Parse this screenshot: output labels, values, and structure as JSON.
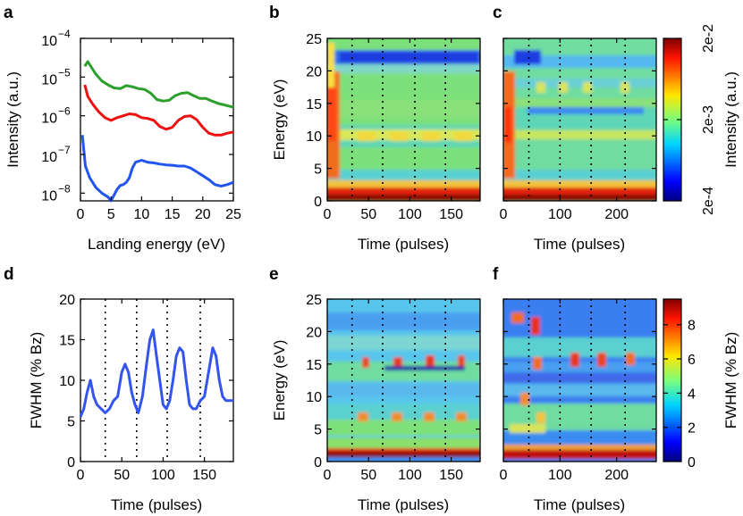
{
  "panel_labels": [
    "a",
    "b",
    "c",
    "d",
    "e",
    "f"
  ],
  "colors": {
    "green": "#2ca02c",
    "red": "#ee1111",
    "blue": "#2255ee",
    "fwhm": "#3355ee"
  },
  "chart_data": [
    {
      "id": "a",
      "type": "line",
      "xlabel": "Landing energy (eV)",
      "ylabel": "Intensity (a.u.)",
      "xlim": [
        0,
        25
      ],
      "ylim_log10": [
        -8.2,
        -4
      ],
      "yscale": "log",
      "xticks": [
        0,
        5,
        10,
        15,
        20,
        25
      ],
      "xtick_labels": [
        "0",
        "5",
        "10",
        "15",
        "20",
        "25"
      ],
      "ytick_labels": [
        {
          "base": "10",
          "exp": "−8",
          "value": -8
        },
        {
          "base": "10",
          "exp": "−7",
          "value": -7
        },
        {
          "base": "10",
          "exp": "−6",
          "value": -6
        },
        {
          "base": "10",
          "exp": "−5",
          "value": -5
        },
        {
          "base": "10",
          "exp": "−4",
          "value": -4
        }
      ],
      "series": [
        {
          "name": "green",
          "color": "#2ca02c",
          "x": [
            0.7,
            1.2,
            1.8,
            2.5,
            3.5,
            4.5,
            5.5,
            6.5,
            7.5,
            8.5,
            9.5,
            10.5,
            11.5,
            12.5,
            13.5,
            14.5,
            15.5,
            16.5,
            17.5,
            18.5,
            19.5,
            20.5,
            21.5,
            22.5,
            23.5,
            25
          ],
          "log10y": [
            -4.72,
            -4.6,
            -4.75,
            -4.92,
            -5.1,
            -5.2,
            -5.28,
            -5.3,
            -5.22,
            -5.25,
            -5.3,
            -5.32,
            -5.42,
            -5.58,
            -5.62,
            -5.6,
            -5.48,
            -5.42,
            -5.4,
            -5.48,
            -5.55,
            -5.55,
            -5.62,
            -5.68,
            -5.72,
            -5.78
          ]
        },
        {
          "name": "red",
          "color": "#ee1111",
          "x": [
            0.7,
            1.2,
            2,
            3,
            4,
            5,
            6,
            7,
            8,
            9,
            10,
            11,
            12,
            13,
            14,
            15,
            16,
            17,
            18,
            19,
            20,
            21,
            22,
            23,
            24,
            25
          ],
          "log10y": [
            -5.2,
            -5.5,
            -5.7,
            -5.9,
            -6.05,
            -6.12,
            -6.05,
            -6.0,
            -5.95,
            -5.97,
            -6.05,
            -6.07,
            -6.12,
            -6.28,
            -6.35,
            -6.3,
            -6.12,
            -6.02,
            -6.0,
            -6.1,
            -6.3,
            -6.45,
            -6.5,
            -6.5,
            -6.45,
            -6.42
          ]
        },
        {
          "name": "blue",
          "color": "#2255ee",
          "x": [
            0.3,
            0.8,
            1.5,
            2.5,
            3.5,
            4.5,
            5,
            5.5,
            6,
            6.5,
            7,
            7.5,
            8,
            8.5,
            9,
            10,
            11,
            12,
            13,
            14,
            15,
            16,
            17,
            18,
            19,
            20,
            21,
            22,
            23,
            24,
            25
          ],
          "log10y": [
            -6.5,
            -7.3,
            -7.6,
            -7.85,
            -8.0,
            -8.1,
            -8.2,
            -8.05,
            -7.9,
            -7.8,
            -7.78,
            -7.72,
            -7.6,
            -7.35,
            -7.2,
            -7.15,
            -7.2,
            -7.22,
            -7.25,
            -7.27,
            -7.28,
            -7.3,
            -7.3,
            -7.35,
            -7.45,
            -7.55,
            -7.65,
            -7.78,
            -7.82,
            -7.78,
            -7.72
          ]
        }
      ]
    },
    {
      "id": "b",
      "type": "heatmap",
      "xlabel": "Time (pulses)",
      "ylabel": "Energy (eV)",
      "xlim": [
        0,
        185
      ],
      "ylim": [
        0,
        25
      ],
      "xticks": [
        0,
        50,
        100,
        150
      ],
      "yticks": [
        0,
        5,
        10,
        15,
        20,
        25
      ],
      "markers": [
        30,
        67,
        106,
        143
      ],
      "colorscale": "log",
      "cmin": 0.0002,
      "cmax": 0.02
    },
    {
      "id": "c",
      "type": "heatmap",
      "xlabel": "Time (pulses)",
      "xlim": [
        0,
        270
      ],
      "ylim": [
        0,
        25
      ],
      "xticks": [
        0,
        100,
        200
      ],
      "markers": [
        45,
        100,
        155,
        215
      ],
      "colorbar": {
        "label": "Intensity (a.u.)",
        "ticks": [
          "2e-2",
          "2e-3",
          "2e-4"
        ],
        "tick_values": [
          0.02,
          0.002,
          0.0002
        ]
      }
    },
    {
      "id": "d",
      "type": "line",
      "xlabel": "Time (pulses)",
      "ylabel": "FWHM (% Bz)",
      "xlim": [
        0,
        185
      ],
      "ylim": [
        0,
        20
      ],
      "xticks": [
        0,
        50,
        100,
        150
      ],
      "yticks": [
        0,
        5,
        10,
        15,
        20
      ],
      "markers": [
        30,
        68,
        105,
        145
      ],
      "series": [
        {
          "name": "FWHM",
          "x": [
            0,
            4,
            8,
            12,
            16,
            20,
            25,
            30,
            35,
            40,
            45,
            50,
            54,
            58,
            62,
            66,
            70,
            75,
            80,
            84,
            88,
            92,
            96,
            100,
            104,
            108,
            112,
            116,
            120,
            124,
            128,
            132,
            136,
            140,
            145,
            150,
            155,
            160,
            164,
            168,
            172,
            176,
            180,
            185
          ],
          "y": [
            5.5,
            6.5,
            8.5,
            10,
            8,
            7,
            6.5,
            6,
            6.5,
            7.5,
            8,
            11,
            12,
            11,
            8.5,
            7,
            6,
            8,
            12,
            15,
            16.2,
            13,
            10,
            7,
            6.5,
            7.5,
            10,
            13,
            14,
            13.5,
            10,
            7,
            6.5,
            6.5,
            7.5,
            8,
            11,
            14,
            13,
            10,
            8,
            7.5,
            7.5,
            7.5
          ]
        }
      ]
    },
    {
      "id": "e",
      "type": "heatmap",
      "xlabel": "Time (pulses)",
      "ylabel": "Energy (eV)",
      "xlim": [
        0,
        185
      ],
      "ylim": [
        0,
        25
      ],
      "xticks": [
        0,
        50,
        100,
        150
      ],
      "yticks": [
        0,
        5,
        10,
        15,
        20,
        25
      ],
      "markers": [
        30,
        67,
        106,
        143
      ]
    },
    {
      "id": "f",
      "type": "heatmap",
      "xlabel": "Time (pulses)",
      "xlim": [
        0,
        270
      ],
      "ylim": [
        0,
        25
      ],
      "xticks": [
        0,
        100,
        200
      ],
      "markers": [
        45,
        100,
        155,
        215
      ],
      "colorbar": {
        "label": "FWHM (% Bz)",
        "ticks": [
          "0",
          "2",
          "4",
          "6",
          "8"
        ],
        "tick_values": [
          0,
          2,
          4,
          6,
          8
        ],
        "max": 9.5
      }
    }
  ]
}
